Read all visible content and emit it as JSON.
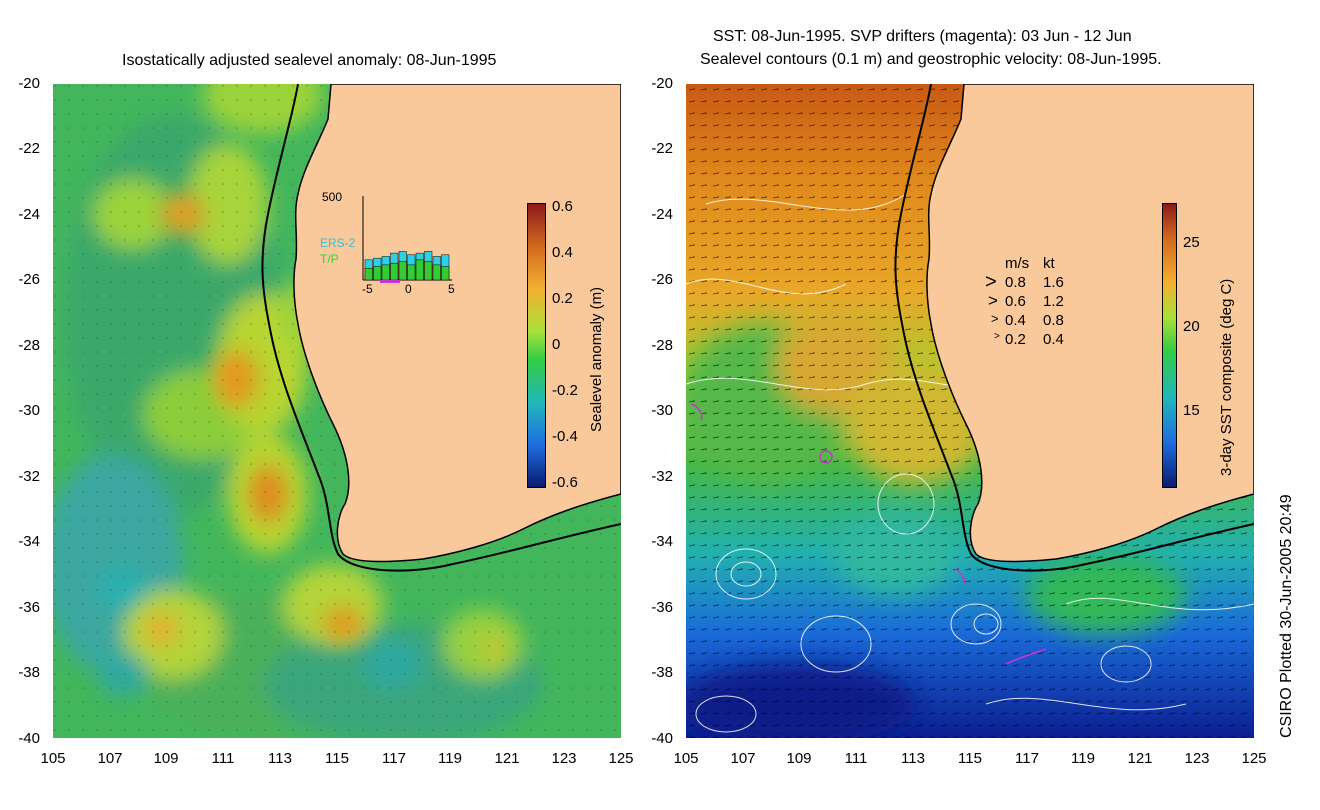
{
  "left_panel": {
    "title": "Isostatically adjusted sealevel anomaly: 08-Jun-1995",
    "y_ticks": [
      "-20",
      "-22",
      "-24",
      "-26",
      "-28",
      "-30",
      "-32",
      "-34",
      "-36",
      "-38",
      "-40"
    ],
    "x_ticks": [
      "105",
      "107",
      "109",
      "111",
      "113",
      "115",
      "117",
      "119",
      "121",
      "123",
      "125"
    ],
    "colorbar": {
      "label": "Sealevel anomaly (m)",
      "ticks": [
        "0.6",
        "0.4",
        "0.2",
        "0",
        "-0.2",
        "-0.4",
        "-0.6"
      ]
    },
    "inset": {
      "y_max": "500",
      "x_ticks": [
        "-5",
        "0",
        "5"
      ],
      "legend": [
        "ERS-2",
        "T/P"
      ],
      "ers2_values": [
        120,
        130,
        140,
        160,
        170,
        150,
        160,
        170,
        140,
        150
      ],
      "tp_values": [
        70,
        80,
        90,
        100,
        110,
        90,
        120,
        110,
        90,
        80
      ]
    }
  },
  "right_panel": {
    "title_line1": "SST: 08-Jun-1995. SVP drifters (magenta): 03 Jun - 12 Jun",
    "title_line2": "Sealevel contours (0.1 m) and geostrophic velocity: 08-Jun-1995.",
    "y_ticks": [
      "-20",
      "-22",
      "-24",
      "-26",
      "-28",
      "-30",
      "-32",
      "-34",
      "-36",
      "-38",
      "-40"
    ],
    "x_ticks": [
      "105",
      "107",
      "109",
      "111",
      "113",
      "115",
      "117",
      "119",
      "121",
      "123",
      "125"
    ],
    "colorbar": {
      "label": "3-day SST composite (deg C)",
      "ticks": [
        "25",
        "20",
        "15"
      ]
    },
    "velocity_legend": {
      "header_ms": "m/s",
      "header_kt": "kt",
      "rows": [
        {
          "ms": "0.8",
          "kt": "1.6"
        },
        {
          "ms": "0.6",
          "kt": "1.2"
        },
        {
          "ms": "0.4",
          "kt": "0.8"
        },
        {
          "ms": "0.2",
          "kt": "0.4"
        }
      ]
    }
  },
  "footer": "CSIRO Plotted 30-Jun-2005 20:49",
  "colors": {
    "land": "#f9c89b",
    "sla_high": "#b5451b",
    "sla_mid": "#7ed321",
    "sla_low": "#1a237e",
    "drifter": "#cc33cc"
  }
}
